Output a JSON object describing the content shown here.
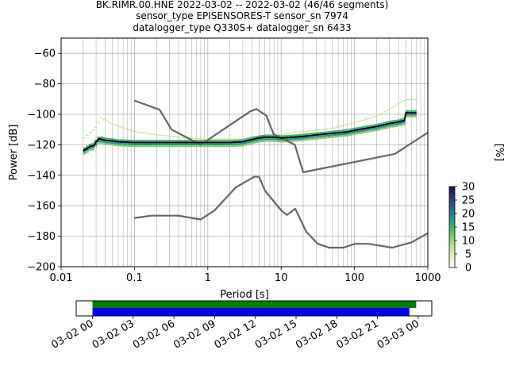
{
  "header": {
    "title_lines": [
      "BK.RIMR.00.HNE   2022-03-02 -- 2022-03-02  (46/46 segments)",
      "sensor_type EPISENSORES-T sensor_sn 7974",
      "datalogger_type Q330S+ datalogger_sn 6433"
    ]
  },
  "colors": {
    "noise_model": "#666666",
    "mode_line": "#000000",
    "coverage_top": "#008000",
    "coverage_bottom": "#0000ff",
    "colormap": [
      "#ffffff",
      "#e3f2c6",
      "#bfe38e",
      "#7fcd6a",
      "#36b46f",
      "#1e8f86",
      "#2a5e8e",
      "#2f2f73",
      "#2a0d3b"
    ]
  },
  "chart_data": [
    {
      "type": "heatmap",
      "title": "",
      "xlabel": "Period [s]",
      "ylabel": "Power [dB]",
      "xscale": "log",
      "xlim": [
        0.01,
        1000
      ],
      "ylim": [
        -200,
        -50
      ],
      "xticks": [
        0.01,
        0.1,
        1,
        10,
        100,
        1000
      ],
      "xtick_labels": [
        "0.01",
        "0.1",
        "1",
        "10",
        "100",
        "1000"
      ],
      "yticks": [
        -200,
        -180,
        -160,
        -140,
        -120,
        -100,
        -80,
        -60
      ],
      "ytick_labels": [
        "−200",
        "−180",
        "−160",
        "−140",
        "−120",
        "−100",
        "−80",
        "−60"
      ],
      "grid": true,
      "colorbar": {
        "label": "[%]",
        "range": [
          0,
          30
        ],
        "ticks": [
          "0",
          "5",
          "10",
          "15",
          "20",
          "25",
          "30"
        ]
      },
      "series": [
        {
          "type": "line",
          "role": "high-noise-model",
          "x": [
            0.1,
            0.22,
            0.32,
            0.8,
            3.8,
            4.6,
            6.3,
            7.9,
            15.4,
            20,
            354.8,
            1000
          ],
          "y": [
            -91,
            -97,
            -110,
            -120,
            -98,
            -96.5,
            -101,
            -113,
            -120,
            -138,
            -126,
            -112
          ]
        },
        {
          "type": "line",
          "role": "low-noise-model",
          "x": [
            0.1,
            0.17,
            0.4,
            0.8,
            1.24,
            2.4,
            4.3,
            5,
            6,
            10,
            12,
            15.6,
            21.9,
            31.6,
            45,
            70.8,
            101,
            154,
            328,
            600,
            1000
          ],
          "y": [
            -168,
            -166.5,
            -166.5,
            -169,
            -163,
            -148,
            -141,
            -141,
            -150,
            -163,
            -166,
            -162,
            -177,
            -185,
            -187.5,
            -187.5,
            -185,
            -185,
            -187.5,
            -184,
            -178
          ]
        },
        {
          "type": "line",
          "role": "mode",
          "x": [
            0.02,
            0.025,
            0.028,
            0.03,
            0.033,
            0.04,
            0.05,
            0.06,
            0.1,
            0.2,
            0.5,
            1,
            2,
            3,
            4,
            5,
            6,
            8,
            10,
            15,
            20,
            30,
            50,
            80,
            100,
            150,
            200,
            300,
            400,
            480,
            500,
            700
          ],
          "y": [
            -124,
            -121,
            -120.5,
            -118,
            -116,
            -117,
            -117.5,
            -118,
            -118.5,
            -118.5,
            -118.5,
            -118.5,
            -118.5,
            -118,
            -116.5,
            -115.5,
            -115,
            -115,
            -115.5,
            -115,
            -114.5,
            -113.5,
            -112.5,
            -111.5,
            -110.5,
            -109,
            -108,
            -106,
            -105,
            -104,
            -99,
            -99
          ]
        },
        {
          "type": "heatmap-band",
          "role": "psd-density-outliers",
          "x": [
            0.02,
            0.03,
            0.035,
            0.05,
            0.1,
            0.2,
            0.5,
            1,
            3,
            5,
            10,
            20,
            50,
            100,
            200,
            500,
            700
          ],
          "y": [
            -116,
            -108,
            -102,
            -106,
            -111,
            -113,
            -115,
            -116,
            -116,
            -115,
            -113,
            -111,
            -109,
            -105,
            -101,
            -90,
            -90
          ]
        }
      ]
    },
    {
      "type": "bar",
      "role": "data-coverage",
      "xtick_labels": [
        "03-02 00",
        "03-02 03",
        "03-02 06",
        "03-02 09",
        "03-02 12",
        "03-02 15",
        "03-02 18",
        "03-02 21",
        "03-03 00"
      ],
      "x_hours": [
        0,
        3,
        6,
        9,
        12,
        15,
        18,
        21,
        24
      ],
      "xlim_hours": [
        -1.2,
        25
      ],
      "series": [
        {
          "role": "top",
          "start_hours": 0,
          "end_hours": 23.85
        },
        {
          "role": "bottom",
          "start_hours": 0,
          "end_hours": 23.35
        }
      ]
    }
  ]
}
